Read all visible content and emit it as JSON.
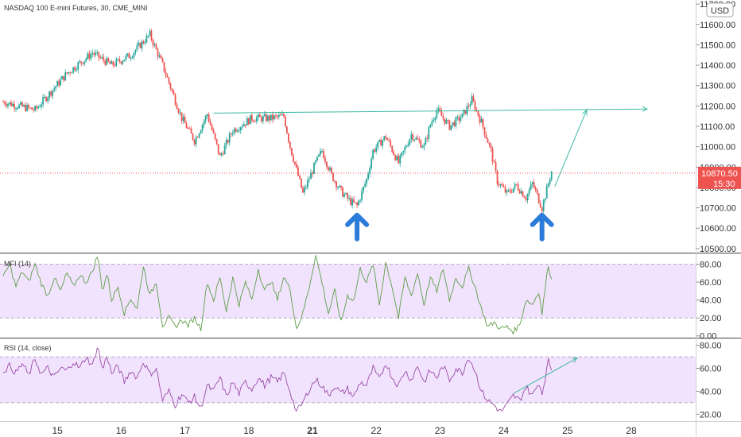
{
  "header": {
    "title": "NASDAQ 100 E-mini Futures, 30, CME_MINI",
    "currency": "USD"
  },
  "price_label": {
    "price": "10870.50",
    "timer": "15:30"
  },
  "colors": {
    "up": "#26a69a",
    "down": "#ef5350",
    "trend": "#3cb9a3",
    "osc_band": "#f1e3fd",
    "mfi_line": "#5d9e46",
    "rsi_line": "#9b4ca6",
    "arrow": "#2b7bd9",
    "price_label_bg": "#ef5350"
  },
  "chart_data": [
    {
      "type": "candlestick",
      "title": "NASDAQ 100 E-mini Futures, 30, CME_MINI",
      "y_ticks": [
        "11700.00",
        "11600.00",
        "11500.00",
        "11400.00",
        "11300.00",
        "11200.00",
        "11100.00",
        "11000.00",
        "10900.00",
        "10800.00",
        "10700.00",
        "10600.00",
        "10500.00"
      ],
      "ylim": [
        10480,
        11720
      ],
      "x_ticks": [
        "15",
        "16",
        "17",
        "18",
        "21",
        "22",
        "23",
        "24",
        "25",
        "28"
      ],
      "x_tick_bold": "21",
      "current_price": 10870.5,
      "anchor_closes": [
        {
          "t": 0,
          "v": 11220
        },
        {
          "t": 5,
          "v": 11180
        },
        {
          "t": 10,
          "v": 11360
        },
        {
          "t": 14,
          "v": 11460
        },
        {
          "t": 17,
          "v": 11400
        },
        {
          "t": 20,
          "v": 11450
        },
        {
          "t": 23,
          "v": 11550
        },
        {
          "t": 25,
          "v": 11400
        },
        {
          "t": 28,
          "v": 11140
        },
        {
          "t": 30,
          "v": 11030
        },
        {
          "t": 32,
          "v": 11160
        },
        {
          "t": 34,
          "v": 10950
        },
        {
          "t": 36,
          "v": 11080
        },
        {
          "t": 39,
          "v": 11140
        },
        {
          "t": 42,
          "v": 11140
        },
        {
          "t": 44,
          "v": 11150
        },
        {
          "t": 45,
          "v": 11000
        },
        {
          "t": 47,
          "v": 10770
        },
        {
          "t": 49,
          "v": 10920
        },
        {
          "t": 50,
          "v": 10980
        },
        {
          "t": 51.5,
          "v": 10860
        },
        {
          "t": 53,
          "v": 10780
        },
        {
          "t": 54.5,
          "v": 10730
        },
        {
          "t": 55.5,
          "v": 10710
        },
        {
          "t": 57,
          "v": 10840
        },
        {
          "t": 58,
          "v": 10980
        },
        {
          "t": 60,
          "v": 11050
        },
        {
          "t": 62,
          "v": 10920
        },
        {
          "t": 64,
          "v": 11060
        },
        {
          "t": 66,
          "v": 11000
        },
        {
          "t": 67,
          "v": 11110
        },
        {
          "t": 68,
          "v": 11180
        },
        {
          "t": 70,
          "v": 11100
        },
        {
          "t": 72,
          "v": 11150
        },
        {
          "t": 73.5,
          "v": 11230
        },
        {
          "t": 75,
          "v": 11120
        },
        {
          "t": 76.5,
          "v": 10980
        },
        {
          "t": 77.5,
          "v": 10830
        },
        {
          "t": 79,
          "v": 10770
        },
        {
          "t": 80.5,
          "v": 10810
        },
        {
          "t": 82,
          "v": 10750
        },
        {
          "t": 83,
          "v": 10820
        },
        {
          "t": 84.5,
          "v": 10700
        },
        {
          "t": 86,
          "v": 10880
        }
      ],
      "trendline": [
        {
          "t": 33,
          "v": 11165
        },
        {
          "t": 101,
          "v": 11185
        }
      ],
      "projection": [
        {
          "t": 86.5,
          "v": 10805
        },
        {
          "t": 91.5,
          "v": 11180
        }
      ],
      "arrows_at": [
        {
          "t": 55.5,
          "v": 10680
        },
        {
          "t": 84.5,
          "v": 10680
        }
      ]
    },
    {
      "type": "line",
      "title": "MFI (14)",
      "y_ticks": [
        "80.00",
        "60.00",
        "40.00",
        "20.00",
        "0.00"
      ],
      "ylim": [
        -2,
        92
      ],
      "band": [
        20,
        80
      ],
      "anchors": [
        {
          "t": 0,
          "v": 65
        },
        {
          "t": 1,
          "v": 80
        },
        {
          "t": 2,
          "v": 55
        },
        {
          "t": 3,
          "v": 72
        },
        {
          "t": 4,
          "v": 60
        },
        {
          "t": 5,
          "v": 80
        },
        {
          "t": 6,
          "v": 58
        },
        {
          "t": 7,
          "v": 45
        },
        {
          "t": 8,
          "v": 65
        },
        {
          "t": 9,
          "v": 50
        },
        {
          "t": 10,
          "v": 70
        },
        {
          "t": 11,
          "v": 55
        },
        {
          "t": 12,
          "v": 68
        },
        {
          "t": 13,
          "v": 60
        },
        {
          "t": 14,
          "v": 72
        },
        {
          "t": 14.8,
          "v": 90
        },
        {
          "t": 15.6,
          "v": 50
        },
        {
          "t": 16.3,
          "v": 70
        },
        {
          "t": 17,
          "v": 40
        },
        {
          "t": 18,
          "v": 55
        },
        {
          "t": 19,
          "v": 25
        },
        {
          "t": 20,
          "v": 42
        },
        {
          "t": 21,
          "v": 30
        },
        {
          "t": 22,
          "v": 78
        },
        {
          "t": 23,
          "v": 45
        },
        {
          "t": 24,
          "v": 60
        },
        {
          "t": 25,
          "v": 12
        },
        {
          "t": 26,
          "v": 20
        },
        {
          "t": 27,
          "v": 10
        },
        {
          "t": 28,
          "v": 18
        },
        {
          "t": 29,
          "v": 12
        },
        {
          "t": 30,
          "v": 20
        },
        {
          "t": 31,
          "v": 8
        },
        {
          "t": 32,
          "v": 60
        },
        {
          "t": 33,
          "v": 40
        },
        {
          "t": 34,
          "v": 65
        },
        {
          "t": 35,
          "v": 28
        },
        {
          "t": 36,
          "v": 65
        },
        {
          "t": 37,
          "v": 35
        },
        {
          "t": 38,
          "v": 60
        },
        {
          "t": 39,
          "v": 40
        },
        {
          "t": 40,
          "v": 75
        },
        {
          "t": 41,
          "v": 50
        },
        {
          "t": 42,
          "v": 62
        },
        {
          "t": 43,
          "v": 40
        },
        {
          "t": 44,
          "v": 66
        },
        {
          "t": 45,
          "v": 52
        },
        {
          "t": 46,
          "v": 8
        },
        {
          "t": 47,
          "v": 25
        },
        {
          "t": 48,
          "v": 55
        },
        {
          "t": 49,
          "v": 90
        },
        {
          "t": 50,
          "v": 60
        },
        {
          "t": 51,
          "v": 25
        },
        {
          "t": 52,
          "v": 50
        },
        {
          "t": 53,
          "v": 15
        },
        {
          "t": 54,
          "v": 45
        },
        {
          "t": 55,
          "v": 40
        },
        {
          "t": 56,
          "v": 75
        },
        {
          "t": 57,
          "v": 60
        },
        {
          "t": 58,
          "v": 80
        },
        {
          "t": 59,
          "v": 35
        },
        {
          "t": 60,
          "v": 82
        },
        {
          "t": 61,
          "v": 55
        },
        {
          "t": 62,
          "v": 20
        },
        {
          "t": 63,
          "v": 65
        },
        {
          "t": 64,
          "v": 45
        },
        {
          "t": 65,
          "v": 70
        },
        {
          "t": 66,
          "v": 35
        },
        {
          "t": 67,
          "v": 65
        },
        {
          "t": 68,
          "v": 50
        },
        {
          "t": 69,
          "v": 75
        },
        {
          "t": 70,
          "v": 40
        },
        {
          "t": 71,
          "v": 65
        },
        {
          "t": 72,
          "v": 55
        },
        {
          "t": 73,
          "v": 75
        },
        {
          "t": 74,
          "v": 55
        },
        {
          "t": 75,
          "v": 30
        },
        {
          "t": 76,
          "v": 10
        },
        {
          "t": 77,
          "v": 15
        },
        {
          "t": 78,
          "v": 8
        },
        {
          "t": 79,
          "v": 10
        },
        {
          "t": 80,
          "v": 5
        },
        {
          "t": 81,
          "v": 12
        },
        {
          "t": 82,
          "v": 40
        },
        {
          "t": 83,
          "v": 35
        },
        {
          "t": 84,
          "v": 50
        },
        {
          "t": 84.5,
          "v": 25
        },
        {
          "t": 85.5,
          "v": 80
        },
        {
          "t": 86,
          "v": 62
        }
      ]
    },
    {
      "type": "line",
      "title": "RSI (14, close)",
      "y_ticks": [
        "80.00",
        "60.00",
        "40.00",
        "20.00"
      ],
      "ylim": [
        14,
        86
      ],
      "band": [
        30,
        70
      ],
      "anchors": [
        {
          "t": 0,
          "v": 58
        },
        {
          "t": 1,
          "v": 62
        },
        {
          "t": 2,
          "v": 56
        },
        {
          "t": 3,
          "v": 64
        },
        {
          "t": 4,
          "v": 54
        },
        {
          "t": 5,
          "v": 68
        },
        {
          "t": 6,
          "v": 55
        },
        {
          "t": 7,
          "v": 60
        },
        {
          "t": 8,
          "v": 52
        },
        {
          "t": 9,
          "v": 60
        },
        {
          "t": 10,
          "v": 58
        },
        {
          "t": 11,
          "v": 66
        },
        {
          "t": 12,
          "v": 60
        },
        {
          "t": 13,
          "v": 70
        },
        {
          "t": 14,
          "v": 62
        },
        {
          "t": 14.8,
          "v": 80
        },
        {
          "t": 15.6,
          "v": 58
        },
        {
          "t": 16.3,
          "v": 72
        },
        {
          "t": 17,
          "v": 55
        },
        {
          "t": 18,
          "v": 62
        },
        {
          "t": 19,
          "v": 48
        },
        {
          "t": 20,
          "v": 58
        },
        {
          "t": 21,
          "v": 52
        },
        {
          "t": 22,
          "v": 66
        },
        {
          "t": 23,
          "v": 55
        },
        {
          "t": 24,
          "v": 60
        },
        {
          "t": 25,
          "v": 32
        },
        {
          "t": 26,
          "v": 40
        },
        {
          "t": 27,
          "v": 28
        },
        {
          "t": 28,
          "v": 38
        },
        {
          "t": 29,
          "v": 30
        },
        {
          "t": 30,
          "v": 35
        },
        {
          "t": 31,
          "v": 25
        },
        {
          "t": 32,
          "v": 45
        },
        {
          "t": 33,
          "v": 40
        },
        {
          "t": 34,
          "v": 52
        },
        {
          "t": 35,
          "v": 35
        },
        {
          "t": 36,
          "v": 48
        },
        {
          "t": 37,
          "v": 38
        },
        {
          "t": 38,
          "v": 48
        },
        {
          "t": 39,
          "v": 42
        },
        {
          "t": 40,
          "v": 52
        },
        {
          "t": 41,
          "v": 45
        },
        {
          "t": 42,
          "v": 52
        },
        {
          "t": 43,
          "v": 48
        },
        {
          "t": 44,
          "v": 56
        },
        {
          "t": 45,
          "v": 40
        },
        {
          "t": 46,
          "v": 22
        },
        {
          "t": 47,
          "v": 30
        },
        {
          "t": 48,
          "v": 42
        },
        {
          "t": 49,
          "v": 50
        },
        {
          "t": 50,
          "v": 45
        },
        {
          "t": 51,
          "v": 36
        },
        {
          "t": 52,
          "v": 45
        },
        {
          "t": 53,
          "v": 38
        },
        {
          "t": 54,
          "v": 42
        },
        {
          "t": 55,
          "v": 35
        },
        {
          "t": 56,
          "v": 48
        },
        {
          "t": 57,
          "v": 45
        },
        {
          "t": 58,
          "v": 60
        },
        {
          "t": 59,
          "v": 50
        },
        {
          "t": 60,
          "v": 65
        },
        {
          "t": 61,
          "v": 52
        },
        {
          "t": 62,
          "v": 45
        },
        {
          "t": 63,
          "v": 58
        },
        {
          "t": 64,
          "v": 50
        },
        {
          "t": 65,
          "v": 62
        },
        {
          "t": 66,
          "v": 48
        },
        {
          "t": 67,
          "v": 58
        },
        {
          "t": 68,
          "v": 52
        },
        {
          "t": 69,
          "v": 62
        },
        {
          "t": 70,
          "v": 50
        },
        {
          "t": 71,
          "v": 60
        },
        {
          "t": 72,
          "v": 56
        },
        {
          "t": 73,
          "v": 70
        },
        {
          "t": 74,
          "v": 58
        },
        {
          "t": 75,
          "v": 40
        },
        {
          "t": 76,
          "v": 32
        },
        {
          "t": 77,
          "v": 28
        },
        {
          "t": 78,
          "v": 22
        },
        {
          "t": 79,
          "v": 28
        },
        {
          "t": 80,
          "v": 36
        },
        {
          "t": 81,
          "v": 32
        },
        {
          "t": 82,
          "v": 44
        },
        {
          "t": 83,
          "v": 36
        },
        {
          "t": 84,
          "v": 48
        },
        {
          "t": 84.5,
          "v": 38
        },
        {
          "t": 85.5,
          "v": 66
        },
        {
          "t": 86,
          "v": 60
        }
      ],
      "divergence_line": [
        {
          "t": 80,
          "v": 38
        },
        {
          "t": 90,
          "v": 69
        }
      ]
    }
  ]
}
